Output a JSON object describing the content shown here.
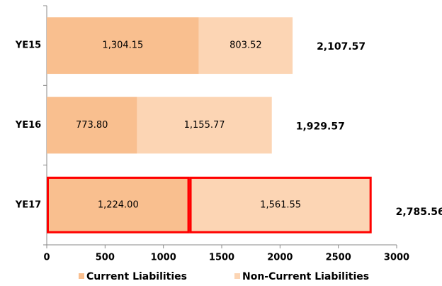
{
  "chart_data": {
    "type": "stacked-barh",
    "categories": [
      "YE15",
      "YE16",
      "YE17"
    ],
    "series": [
      {
        "name": "Current Liabilities",
        "color": "#f9bf8f",
        "values": [
          1304.15,
          773.8,
          1224.0
        ],
        "value_labels": [
          "1,304.15",
          "773.80",
          "1,224.00"
        ]
      },
      {
        "name": "Non-Current Liabilities",
        "color": "#fcd5b4",
        "values": [
          803.52,
          1155.77,
          1561.55
        ],
        "value_labels": [
          "803.52",
          "1,155.77",
          "1,561.55"
        ]
      }
    ],
    "totals": [
      2107.57,
      1929.57,
      2785.56
    ],
    "total_labels": [
      "2,107.57",
      "1,929.57",
      "2,785.56"
    ],
    "xlim": [
      0,
      3000
    ],
    "xticks": [
      0,
      500,
      1000,
      1500,
      2000,
      2500,
      3000
    ],
    "highlight": 2,
    "highlight_color": "#ff0000",
    "legend": "bottom"
  }
}
